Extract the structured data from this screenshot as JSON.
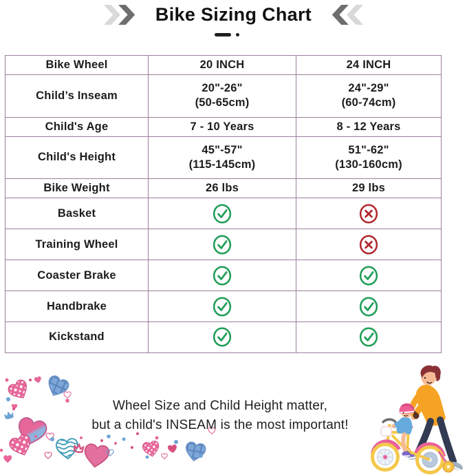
{
  "header": {
    "title": "Bike Sizing Chart"
  },
  "table": {
    "rows": [
      {
        "label": "Bike Wheel",
        "values": [
          {
            "type": "text",
            "text": "20 INCH"
          },
          {
            "type": "text",
            "text": "24 INCH"
          }
        ]
      },
      {
        "label": "Child’s Inseam",
        "values": [
          {
            "type": "text",
            "text": "20\"-26\"",
            "sub": "(50-65cm)"
          },
          {
            "type": "text",
            "text": "24\"-29\"",
            "sub": "(60-74cm)"
          }
        ]
      },
      {
        "label": "Child's Age",
        "values": [
          {
            "type": "text",
            "text": "7 - 10 Years"
          },
          {
            "type": "text",
            "text": "8 - 12 Years"
          }
        ]
      },
      {
        "label": "Child's Height",
        "values": [
          {
            "type": "text",
            "text": "45\"-57\"",
            "sub": "(115-145cm)"
          },
          {
            "type": "text",
            "text": "51\"-62\"",
            "sub": "(130-160cm)"
          }
        ]
      },
      {
        "label": "Bike Weight",
        "values": [
          {
            "type": "text",
            "text": "26 lbs"
          },
          {
            "type": "text",
            "text": "29 lbs"
          }
        ]
      },
      {
        "label": "Basket",
        "values": [
          {
            "type": "icon",
            "icon": "check"
          },
          {
            "type": "icon",
            "icon": "cross"
          }
        ]
      },
      {
        "label": "Training Wheel",
        "values": [
          {
            "type": "icon",
            "icon": "check"
          },
          {
            "type": "icon",
            "icon": "cross"
          }
        ]
      },
      {
        "label": "Coaster Brake",
        "values": [
          {
            "type": "icon",
            "icon": "check"
          },
          {
            "type": "icon",
            "icon": "check"
          }
        ]
      },
      {
        "label": "Handbrake",
        "values": [
          {
            "type": "icon",
            "icon": "check"
          },
          {
            "type": "icon",
            "icon": "check"
          }
        ]
      },
      {
        "label": "Kickstand",
        "values": [
          {
            "type": "icon",
            "icon": "check"
          },
          {
            "type": "icon",
            "icon": "check"
          }
        ]
      }
    ]
  },
  "footer": {
    "note_line1": "Wheel Size and Child Height matter,",
    "note_line2": "but a child's INSEAM is the most important!"
  },
  "icons": {
    "check": "check-circle-icon",
    "cross": "cross-circle-icon",
    "chevrons_left": "chevrons-right-icon",
    "chevrons_right": "chevrons-left-icon"
  },
  "colors": {
    "table_border": "#9e7d9e",
    "check_green": "#1f9d57",
    "cross_red": "#b2282e",
    "chevron_dark": "#6e6e6e",
    "chevron_light": "#d9d9d9"
  },
  "chart_data": {
    "type": "table",
    "title": "Bike Sizing Chart",
    "columns": [
      "Bike Wheel",
      "20 INCH",
      "24 INCH"
    ],
    "rows": [
      [
        "Child's Inseam",
        "20\"-26\" (50-65cm)",
        "24\"-29\" (60-74cm)"
      ],
      [
        "Child's Age",
        "7 - 10 Years",
        "8 - 12 Years"
      ],
      [
        "Child's Height",
        "45\"-57\" (115-145cm)",
        "51\"-62\" (130-160cm)"
      ],
      [
        "Bike Weight",
        "26 lbs",
        "29 lbs"
      ],
      [
        "Basket",
        "yes",
        "no"
      ],
      [
        "Training Wheel",
        "yes",
        "no"
      ],
      [
        "Coaster Brake",
        "yes",
        "yes"
      ],
      [
        "Handbrake",
        "yes",
        "yes"
      ],
      [
        "Kickstand",
        "yes",
        "yes"
      ]
    ]
  }
}
